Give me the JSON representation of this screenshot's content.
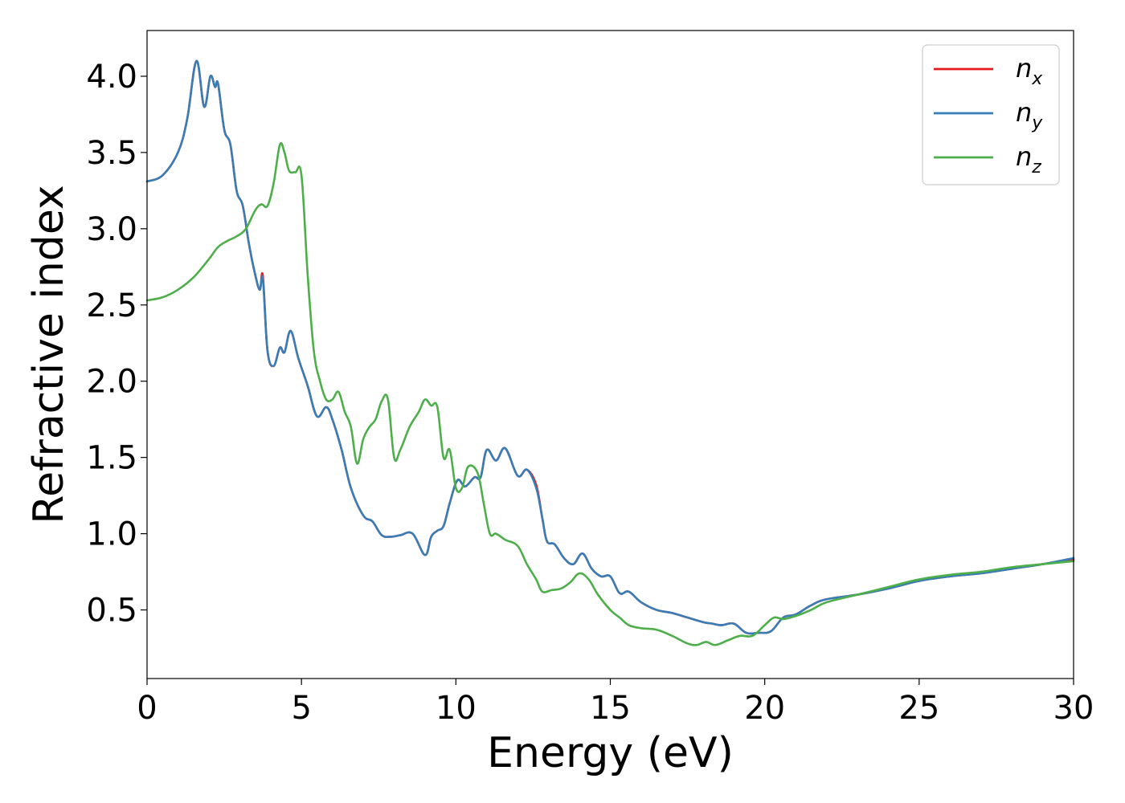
{
  "chart_data": {
    "type": "line",
    "title": "",
    "xlabel": "Energy (eV)",
    "ylabel": "Refractive index",
    "xlim": [
      0,
      30
    ],
    "ylim": [
      0.05,
      4.3
    ],
    "xticks": [
      "0",
      "5",
      "10",
      "15",
      "20",
      "25",
      "30"
    ],
    "yticks": [
      "0.5",
      "1.0",
      "1.5",
      "2.0",
      "2.5",
      "3.0",
      "3.5",
      "4.0"
    ],
    "grid": false,
    "legend_position": "top-right",
    "series": [
      {
        "name": "n",
        "subscript": "x",
        "color": "#e41a1c",
        "x": [
          0,
          0.5,
          1.0,
          1.3,
          1.6,
          1.85,
          2.05,
          2.2,
          2.3,
          2.5,
          2.7,
          2.9,
          3.1,
          3.3,
          3.5,
          3.65,
          3.75,
          3.9,
          4.1,
          4.3,
          4.45,
          4.65,
          4.9,
          5.2,
          5.5,
          5.8,
          6.0,
          6.3,
          6.6,
          7.0,
          7.3,
          7.6,
          7.9,
          8.2,
          8.6,
          9.0,
          9.2,
          9.4,
          9.6,
          9.8,
          10.05,
          10.3,
          10.6,
          10.8,
          11.0,
          11.3,
          11.6,
          12.0,
          12.3,
          12.6,
          12.8,
          12.95,
          13.2,
          13.5,
          13.8,
          14.1,
          14.4,
          14.7,
          15.0,
          15.3,
          15.6,
          16.0,
          16.5,
          17.0,
          17.5,
          18.0,
          18.3,
          18.6,
          19.0,
          19.4,
          19.8,
          20.2,
          20.6,
          21.0,
          21.5,
          22.0,
          23.0,
          24.0,
          25.0,
          26.0,
          27.0,
          28.0,
          29.0,
          30.0
        ],
        "y": [
          3.31,
          3.35,
          3.5,
          3.72,
          4.1,
          3.8,
          4.0,
          3.93,
          3.95,
          3.65,
          3.55,
          3.25,
          3.15,
          2.9,
          2.7,
          2.6,
          2.69,
          2.2,
          2.1,
          2.22,
          2.19,
          2.33,
          2.15,
          1.97,
          1.77,
          1.83,
          1.75,
          1.55,
          1.3,
          1.12,
          1.08,
          0.99,
          0.98,
          0.99,
          1.0,
          0.86,
          0.98,
          1.02,
          1.05,
          1.2,
          1.35,
          1.31,
          1.37,
          1.37,
          1.55,
          1.48,
          1.56,
          1.38,
          1.42,
          1.32,
          1.1,
          0.95,
          0.93,
          0.84,
          0.8,
          0.87,
          0.77,
          0.72,
          0.72,
          0.61,
          0.62,
          0.55,
          0.5,
          0.48,
          0.45,
          0.42,
          0.41,
          0.4,
          0.41,
          0.35,
          0.35,
          0.36,
          0.45,
          0.47,
          0.53,
          0.57,
          0.6,
          0.64,
          0.69,
          0.72,
          0.74,
          0.77,
          0.8,
          0.83
        ],
        "note_x_shift": 0
      },
      {
        "name": "n",
        "subscript": "y",
        "color": "#377eb8",
        "x": [
          0,
          0.5,
          1.0,
          1.3,
          1.6,
          1.85,
          2.05,
          2.2,
          2.3,
          2.5,
          2.7,
          2.9,
          3.1,
          3.3,
          3.5,
          3.65,
          3.75,
          3.9,
          4.1,
          4.3,
          4.45,
          4.65,
          4.9,
          5.2,
          5.5,
          5.8,
          6.0,
          6.3,
          6.6,
          7.0,
          7.3,
          7.6,
          7.9,
          8.2,
          8.6,
          9.0,
          9.2,
          9.4,
          9.6,
          9.8,
          10.05,
          10.3,
          10.6,
          10.8,
          11.0,
          11.3,
          11.6,
          12.0,
          12.3,
          12.6,
          12.8,
          12.95,
          13.2,
          13.5,
          13.8,
          14.1,
          14.4,
          14.7,
          15.0,
          15.3,
          15.6,
          16.0,
          16.5,
          17.0,
          17.5,
          18.0,
          18.3,
          18.6,
          19.0,
          19.4,
          19.8,
          20.2,
          20.6,
          21.0,
          21.5,
          22.0,
          23.0,
          24.0,
          25.0,
          26.0,
          27.0,
          28.0,
          29.0,
          30.0
        ],
        "y": [
          3.31,
          3.35,
          3.5,
          3.72,
          4.1,
          3.8,
          4.0,
          3.93,
          3.95,
          3.65,
          3.55,
          3.25,
          3.15,
          2.9,
          2.7,
          2.6,
          2.67,
          2.2,
          2.1,
          2.22,
          2.19,
          2.33,
          2.15,
          1.97,
          1.77,
          1.83,
          1.75,
          1.55,
          1.3,
          1.12,
          1.08,
          0.99,
          0.98,
          0.99,
          1.0,
          0.86,
          0.98,
          1.02,
          1.05,
          1.2,
          1.35,
          1.31,
          1.37,
          1.37,
          1.55,
          1.48,
          1.56,
          1.38,
          1.42,
          1.3,
          1.1,
          0.95,
          0.93,
          0.84,
          0.8,
          0.87,
          0.77,
          0.72,
          0.72,
          0.61,
          0.62,
          0.55,
          0.5,
          0.48,
          0.45,
          0.42,
          0.41,
          0.4,
          0.41,
          0.35,
          0.35,
          0.36,
          0.45,
          0.47,
          0.53,
          0.57,
          0.6,
          0.64,
          0.69,
          0.72,
          0.74,
          0.77,
          0.8,
          0.84
        ]
      },
      {
        "name": "n",
        "subscript": "z",
        "color": "#4daf4a",
        "x": [
          0,
          0.5,
          1.0,
          1.5,
          2.0,
          2.3,
          2.6,
          2.9,
          3.2,
          3.5,
          3.7,
          3.9,
          4.1,
          4.3,
          4.45,
          4.6,
          4.8,
          5.0,
          5.2,
          5.4,
          5.6,
          5.8,
          6.0,
          6.2,
          6.4,
          6.6,
          6.8,
          7.0,
          7.2,
          7.4,
          7.6,
          7.8,
          8.0,
          8.2,
          8.5,
          8.8,
          9.0,
          9.2,
          9.4,
          9.6,
          9.8,
          10.0,
          10.2,
          10.4,
          10.7,
          10.9,
          11.1,
          11.3,
          11.6,
          12.0,
          12.3,
          12.6,
          12.8,
          13.1,
          13.4,
          13.7,
          14.0,
          14.3,
          14.6,
          15.0,
          15.3,
          15.6,
          16.0,
          16.5,
          17.0,
          17.5,
          17.8,
          18.1,
          18.4,
          18.8,
          19.2,
          19.6,
          20.0,
          20.3,
          20.6,
          21.0,
          21.5,
          22.0,
          23.0,
          24.0,
          25.0,
          26.0,
          27.0,
          28.0,
          29.0,
          30.0
        ],
        "y": [
          2.53,
          2.55,
          2.6,
          2.68,
          2.8,
          2.88,
          2.92,
          2.95,
          3.0,
          3.12,
          3.16,
          3.15,
          3.3,
          3.55,
          3.5,
          3.38,
          3.37,
          3.35,
          2.7,
          2.2,
          2.0,
          1.88,
          1.88,
          1.93,
          1.8,
          1.7,
          1.46,
          1.62,
          1.7,
          1.75,
          1.87,
          1.88,
          1.5,
          1.55,
          1.7,
          1.8,
          1.88,
          1.84,
          1.83,
          1.5,
          1.55,
          1.3,
          1.3,
          1.44,
          1.4,
          1.2,
          1.0,
          1.0,
          0.96,
          0.92,
          0.8,
          0.7,
          0.62,
          0.63,
          0.64,
          0.68,
          0.74,
          0.7,
          0.6,
          0.5,
          0.45,
          0.4,
          0.38,
          0.37,
          0.33,
          0.28,
          0.27,
          0.29,
          0.27,
          0.3,
          0.33,
          0.33,
          0.4,
          0.45,
          0.44,
          0.46,
          0.5,
          0.55,
          0.6,
          0.65,
          0.7,
          0.73,
          0.75,
          0.78,
          0.8,
          0.82
        ]
      }
    ]
  }
}
